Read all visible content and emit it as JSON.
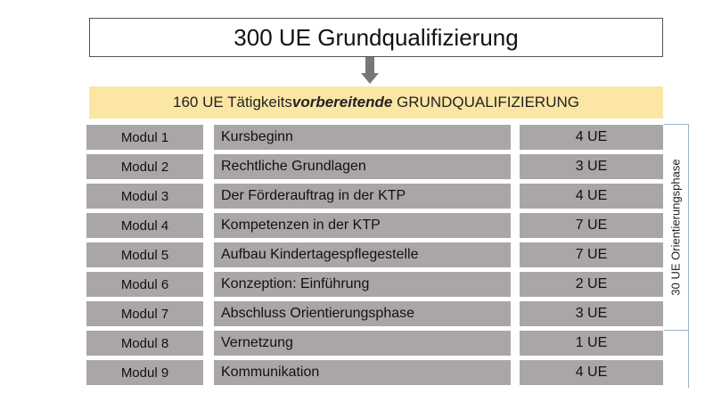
{
  "title": "300 UE Grundqualifizierung",
  "banner": {
    "prefix": "160 UE Tätigkeits",
    "emphasis": "vorbereitende",
    "suffix": " GRUNDQUALIFIZIERUNG",
    "color": "#fbe6a5"
  },
  "bracket_label": "30 UE Orientierungsphase",
  "cell_color": "#aaa6a6",
  "modules": [
    {
      "modul": "Modul 1",
      "title": "Kursbeginn",
      "ue": "4 UE"
    },
    {
      "modul": "Modul 2",
      "title": "Rechtliche Grundlagen",
      "ue": "3 UE"
    },
    {
      "modul": "Modul 3",
      "title": "Der Förderauftrag in der KTP",
      "ue": "4 UE"
    },
    {
      "modul": "Modul 4",
      "title": "Kompetenzen in der KTP",
      "ue": "7 UE"
    },
    {
      "modul": "Modul 5",
      "title": "Aufbau Kindertagespflegestelle",
      "ue": "7 UE"
    },
    {
      "modul": "Modul 6",
      "title": "Konzeption: Einführung",
      "ue": "2 UE"
    },
    {
      "modul": "Modul 7",
      "title": "Abschluss Orientierungsphase",
      "ue": "3 UE"
    },
    {
      "modul": "Modul 8",
      "title": "Vernetzung",
      "ue": "1 UE"
    },
    {
      "modul": "Modul 9",
      "title": "Kommunikation",
      "ue": "4 UE"
    }
  ]
}
